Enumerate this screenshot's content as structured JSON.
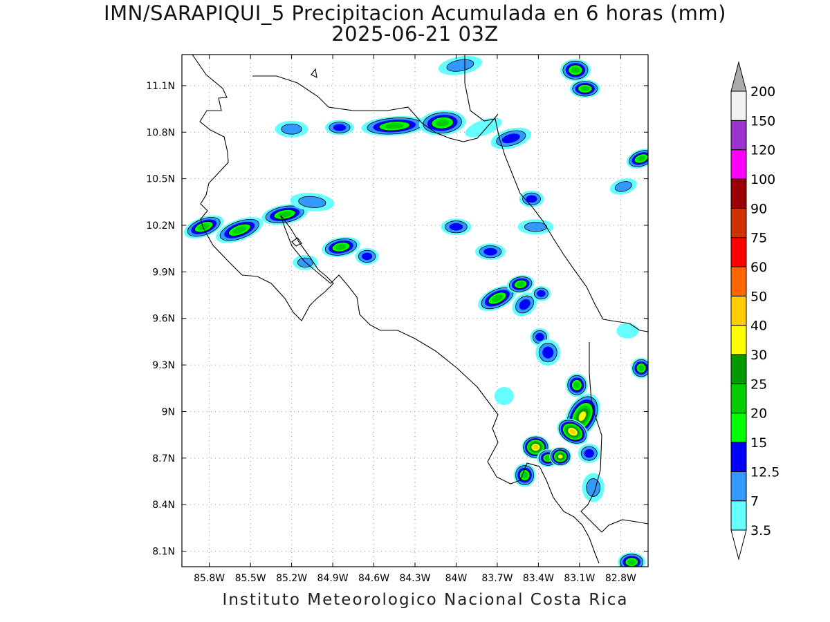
{
  "title": "IMN/SARAPIQUI_5 Precipitacion Acumulada en 6 horas (mm)",
  "subtitle": "2025-06-21 03Z",
  "footer": "Instituto Meteorologico Nacional Costa Rica",
  "map": {
    "lon_range": [
      -86.0,
      -82.6
    ],
    "lat_range": [
      8.0,
      11.3
    ],
    "lon_ticks": [
      {
        "value": -85.8,
        "label": "85.8W"
      },
      {
        "value": -85.5,
        "label": "85.5W"
      },
      {
        "value": -85.2,
        "label": "85.2W"
      },
      {
        "value": -84.9,
        "label": "84.9W"
      },
      {
        "value": -84.6,
        "label": "84.6W"
      },
      {
        "value": -84.3,
        "label": "84.3W"
      },
      {
        "value": -84.0,
        "label": "84W"
      },
      {
        "value": -83.7,
        "label": "83.7W"
      },
      {
        "value": -83.4,
        "label": "83.4W"
      },
      {
        "value": -83.1,
        "label": "83.1W"
      },
      {
        "value": -82.8,
        "label": "82.8W"
      }
    ],
    "lat_ticks": [
      {
        "value": 11.1,
        "label": "11.1N"
      },
      {
        "value": 10.8,
        "label": "10.8N"
      },
      {
        "value": 10.5,
        "label": "10.5N"
      },
      {
        "value": 10.2,
        "label": "10.2N"
      },
      {
        "value": 9.9,
        "label": "9.9N"
      },
      {
        "value": 9.6,
        "label": "9.6N"
      },
      {
        "value": 9.3,
        "label": "9.3N"
      },
      {
        "value": 9.0,
        "label": "9N"
      },
      {
        "value": 8.7,
        "label": "8.7N"
      },
      {
        "value": 8.4,
        "label": "8.4N"
      },
      {
        "value": 8.1,
        "label": "8.1N"
      }
    ],
    "grid": true,
    "precip_cells": [
      {
        "lon": -84.45,
        "lat": 10.84,
        "rx": 42,
        "ry": 9,
        "rot": -4,
        "level": 20
      },
      {
        "lon": -84.1,
        "lat": 10.86,
        "rx": 28,
        "ry": 13,
        "rot": -5,
        "level": 20
      },
      {
        "lon": -84.85,
        "lat": 10.83,
        "rx": 15,
        "ry": 6,
        "rot": 0,
        "level": 12.5
      },
      {
        "lon": -85.2,
        "lat": 10.82,
        "rx": 18,
        "ry": 7,
        "rot": 0,
        "level": 7
      },
      {
        "lon": -83.6,
        "lat": 10.76,
        "rx": 24,
        "ry": 9,
        "rot": -15,
        "level": 12.5
      },
      {
        "lon": -83.8,
        "lat": 10.83,
        "rx": 22,
        "ry": 6,
        "rot": -20,
        "level": 3.5
      },
      {
        "lon": -85.84,
        "lat": 10.19,
        "rx": 24,
        "ry": 9,
        "rot": -20,
        "level": 20
      },
      {
        "lon": -85.58,
        "lat": 10.17,
        "rx": 30,
        "ry": 10,
        "rot": -20,
        "level": 20
      },
      {
        "lon": -85.25,
        "lat": 10.27,
        "rx": 28,
        "ry": 9,
        "rot": -10,
        "level": 20
      },
      {
        "lon": -84.84,
        "lat": 10.06,
        "rx": 22,
        "ry": 9,
        "rot": -10,
        "level": 20
      },
      {
        "lon": -84.65,
        "lat": 10.0,
        "rx": 11,
        "ry": 7,
        "rot": 0,
        "level": 12.5
      },
      {
        "lon": -85.05,
        "lat": 10.35,
        "rx": 26,
        "ry": 8,
        "rot": 5,
        "level": 7
      },
      {
        "lon": -85.1,
        "lat": 9.96,
        "rx": 12,
        "ry": 6,
        "rot": 0,
        "level": 7
      },
      {
        "lon": -83.7,
        "lat": 9.73,
        "rx": 24,
        "ry": 10,
        "rot": -25,
        "level": 20
      },
      {
        "lon": -83.53,
        "lat": 9.82,
        "rx": 14,
        "ry": 8,
        "rot": -10,
        "level": 20
      },
      {
        "lon": -83.5,
        "lat": 9.69,
        "rx": 14,
        "ry": 10,
        "rot": -40,
        "level": 12.5
      },
      {
        "lon": -83.38,
        "lat": 9.76,
        "rx": 8,
        "ry": 6,
        "rot": 0,
        "level": 12.5
      },
      {
        "lon": -83.75,
        "lat": 10.03,
        "rx": 16,
        "ry": 7,
        "rot": 0,
        "level": 12.5
      },
      {
        "lon": -84.0,
        "lat": 10.19,
        "rx": 16,
        "ry": 7,
        "rot": 0,
        "level": 12.5
      },
      {
        "lon": -83.45,
        "lat": 10.37,
        "rx": 12,
        "ry": 7,
        "rot": 0,
        "level": 12.5
      },
      {
        "lon": -83.42,
        "lat": 10.19,
        "rx": 20,
        "ry": 6,
        "rot": 0,
        "level": 7
      },
      {
        "lon": -82.65,
        "lat": 10.63,
        "rx": 16,
        "ry": 8,
        "rot": -20,
        "level": 20
      },
      {
        "lon": -82.78,
        "lat": 10.45,
        "rx": 14,
        "ry": 6,
        "rot": -15,
        "level": 7
      },
      {
        "lon": -83.13,
        "lat": 11.2,
        "rx": 16,
        "ry": 11,
        "rot": 0,
        "level": 20
      },
      {
        "lon": -83.06,
        "lat": 11.08,
        "rx": 16,
        "ry": 8,
        "rot": 0,
        "level": 20
      },
      {
        "lon": -83.97,
        "lat": 11.23,
        "rx": 26,
        "ry": 8,
        "rot": -10,
        "level": 7
      },
      {
        "lon": -83.39,
        "lat": 9.48,
        "rx": 8,
        "ry": 8,
        "rot": 0,
        "level": 12.5
      },
      {
        "lon": -83.33,
        "lat": 9.38,
        "rx": 12,
        "ry": 14,
        "rot": 0,
        "level": 12.5
      },
      {
        "lon": -83.12,
        "lat": 9.17,
        "rx": 10,
        "ry": 12,
        "rot": 0,
        "level": 20
      },
      {
        "lon": -83.08,
        "lat": 8.97,
        "rx": 16,
        "ry": 30,
        "rot": 28,
        "level": 30
      },
      {
        "lon": -83.15,
        "lat": 8.87,
        "rx": 18,
        "ry": 12,
        "rot": 30,
        "level": 40
      },
      {
        "lon": -83.42,
        "lat": 8.77,
        "rx": 14,
        "ry": 12,
        "rot": 0,
        "level": 40
      },
      {
        "lon": -83.33,
        "lat": 8.7,
        "rx": 10,
        "ry": 8,
        "rot": 0,
        "level": 20
      },
      {
        "lon": -83.24,
        "lat": 8.71,
        "rx": 10,
        "ry": 9,
        "rot": 0,
        "level": 30
      },
      {
        "lon": -83.5,
        "lat": 8.59,
        "rx": 10,
        "ry": 12,
        "rot": 0,
        "level": 20
      },
      {
        "lon": -83.03,
        "lat": 8.73,
        "rx": 10,
        "ry": 9,
        "rot": 0,
        "level": 12.5
      },
      {
        "lon": -83.0,
        "lat": 8.51,
        "rx": 10,
        "ry": 16,
        "rot": 0,
        "level": 7
      },
      {
        "lon": -82.65,
        "lat": 9.28,
        "rx": 9,
        "ry": 10,
        "rot": 0,
        "level": 20
      },
      {
        "lon": -82.72,
        "lat": 8.03,
        "rx": 14,
        "ry": 9,
        "rot": 0,
        "level": 20
      },
      {
        "lon": -83.65,
        "lat": 9.1,
        "rx": 8,
        "ry": 8,
        "rot": 0,
        "level": 3.5
      },
      {
        "lon": -82.75,
        "lat": 9.52,
        "rx": 10,
        "ry": 6,
        "rot": 0,
        "level": 3.5
      }
    ]
  },
  "colorbar": {
    "levels": [
      "3.5",
      "7",
      "12.5",
      "15",
      "20",
      "25",
      "30",
      "40",
      "50",
      "60",
      "75",
      "90",
      "100",
      "120",
      "150",
      "200"
    ],
    "colors": [
      "#66ffff",
      "#3399ff",
      "#0000ff",
      "#00ff00",
      "#00cc00",
      "#009900",
      "#ffff00",
      "#ffcc00",
      "#ff6600",
      "#ff0000",
      "#cc3300",
      "#990000",
      "#ff00ff",
      "#9933cc",
      "#f2f2f2",
      "#aaaaaa"
    ],
    "low_end_color": "#ffffff",
    "high_end_color": "#aaaaaa"
  }
}
